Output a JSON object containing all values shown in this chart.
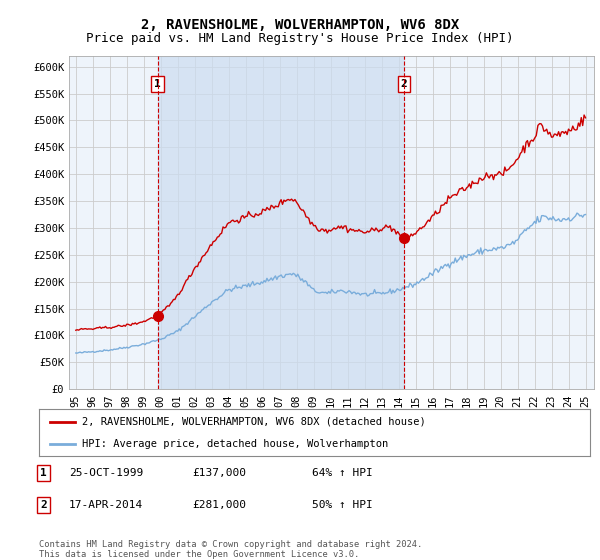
{
  "title": "2, RAVENSHOLME, WOLVERHAMPTON, WV6 8DX",
  "subtitle": "Price paid vs. HM Land Registry's House Price Index (HPI)",
  "ylabel_ticks": [
    "£0",
    "£50K",
    "£100K",
    "£150K",
    "£200K",
    "£250K",
    "£300K",
    "£350K",
    "£400K",
    "£450K",
    "£500K",
    "£550K",
    "£600K"
  ],
  "ylim": [
    0,
    620000
  ],
  "ytick_values": [
    0,
    50000,
    100000,
    150000,
    200000,
    250000,
    300000,
    350000,
    400000,
    450000,
    500000,
    550000,
    600000
  ],
  "purchase1": {
    "date_x": 1999.81,
    "price": 137000,
    "label": "1"
  },
  "purchase2": {
    "date_x": 2014.3,
    "price": 281000,
    "label": "2"
  },
  "legend_line1": "2, RAVENSHOLME, WOLVERHAMPTON, WV6 8DX (detached house)",
  "legend_line2": "HPI: Average price, detached house, Wolverhampton",
  "table_row1": [
    "1",
    "25-OCT-1999",
    "£137,000",
    "64% ↑ HPI"
  ],
  "table_row2": [
    "2",
    "17-APR-2014",
    "£281,000",
    "50% ↑ HPI"
  ],
  "footnote": "Contains HM Land Registry data © Crown copyright and database right 2024.\nThis data is licensed under the Open Government Licence v3.0.",
  "line_color_red": "#cc0000",
  "line_color_blue": "#7aaddb",
  "vline_color": "#cc0000",
  "background_color": "#ffffff",
  "chart_bg_color": "#eef4fb",
  "shade_color": "#ccddf0",
  "grid_color": "#cccccc",
  "title_fontsize": 10,
  "subtitle_fontsize": 9,
  "tick_fontsize": 7.5,
  "xlim_start": 1994.6,
  "xlim_end": 2025.5,
  "xtick_labels": [
    "95",
    "96",
    "97",
    "98",
    "99",
    "00",
    "01",
    "02",
    "03",
    "04",
    "05",
    "06",
    "07",
    "08",
    "09",
    "10",
    "11",
    "12",
    "13",
    "14",
    "15",
    "16",
    "17",
    "18",
    "19",
    "20",
    "21",
    "22",
    "23",
    "24",
    "25"
  ],
  "xtick_years": [
    1995,
    1996,
    1997,
    1998,
    1999,
    2000,
    2001,
    2002,
    2003,
    2004,
    2005,
    2006,
    2007,
    2008,
    2009,
    2010,
    2011,
    2012,
    2013,
    2014,
    2015,
    2016,
    2017,
    2018,
    2019,
    2020,
    2021,
    2022,
    2023,
    2024,
    2025
  ]
}
